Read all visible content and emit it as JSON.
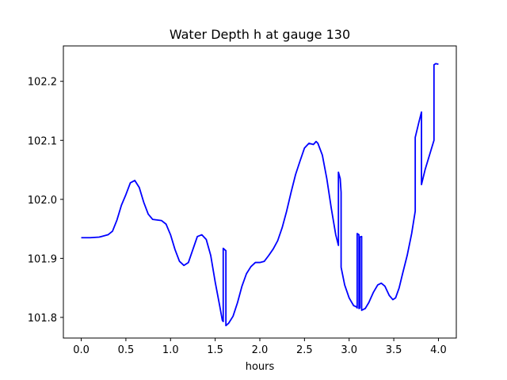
{
  "chart_data": {
    "type": "line",
    "title": "Water Depth h at gauge 130",
    "xlabel": "hours",
    "ylabel": "",
    "xlim": [
      -0.2,
      4.2
    ],
    "ylim": [
      101.765,
      102.26
    ],
    "xticks": [
      0.0,
      0.5,
      1.0,
      1.5,
      2.0,
      2.5,
      3.0,
      3.5,
      4.0
    ],
    "xtick_labels": [
      "0.0",
      "0.5",
      "1.0",
      "1.5",
      "2.0",
      "2.5",
      "3.0",
      "3.5",
      "4.0"
    ],
    "yticks": [
      101.8,
      101.9,
      102.0,
      102.1,
      102.2
    ],
    "ytick_labels": [
      "101.8",
      "101.9",
      "102.0",
      "102.1",
      "102.2"
    ],
    "grid": false,
    "color": "#0000ff",
    "series": [
      {
        "name": "",
        "points": [
          [
            0.0,
            101.935
          ],
          [
            0.1,
            101.935
          ],
          [
            0.2,
            101.936
          ],
          [
            0.3,
            101.94
          ],
          [
            0.35,
            101.946
          ],
          [
            0.4,
            101.965
          ],
          [
            0.45,
            101.99
          ],
          [
            0.5,
            102.008
          ],
          [
            0.55,
            102.028
          ],
          [
            0.6,
            102.032
          ],
          [
            0.65,
            102.02
          ],
          [
            0.7,
            101.995
          ],
          [
            0.75,
            101.975
          ],
          [
            0.8,
            101.966
          ],
          [
            0.85,
            101.965
          ],
          [
            0.9,
            101.964
          ],
          [
            0.95,
            101.958
          ],
          [
            1.0,
            101.94
          ],
          [
            1.05,
            101.915
          ],
          [
            1.1,
            101.895
          ],
          [
            1.15,
            101.888
          ],
          [
            1.2,
            101.893
          ],
          [
            1.25,
            101.915
          ],
          [
            1.3,
            101.937
          ],
          [
            1.35,
            101.94
          ],
          [
            1.4,
            101.932
          ],
          [
            1.45,
            101.905
          ],
          [
            1.5,
            101.86
          ],
          [
            1.55,
            101.82
          ],
          [
            1.58,
            101.795
          ],
          [
            1.59,
            101.793
          ],
          [
            1.59,
            101.917
          ],
          [
            1.62,
            101.913
          ],
          [
            1.62,
            101.786
          ],
          [
            1.65,
            101.79
          ],
          [
            1.7,
            101.802
          ],
          [
            1.75,
            101.825
          ],
          [
            1.8,
            101.853
          ],
          [
            1.85,
            101.874
          ],
          [
            1.9,
            101.886
          ],
          [
            1.95,
            101.893
          ],
          [
            2.0,
            101.893
          ],
          [
            2.05,
            101.895
          ],
          [
            2.1,
            101.905
          ],
          [
            2.15,
            101.916
          ],
          [
            2.2,
            101.93
          ],
          [
            2.25,
            101.952
          ],
          [
            2.3,
            101.98
          ],
          [
            2.35,
            102.012
          ],
          [
            2.4,
            102.042
          ],
          [
            2.45,
            102.065
          ],
          [
            2.5,
            102.087
          ],
          [
            2.55,
            102.095
          ],
          [
            2.6,
            102.093
          ],
          [
            2.63,
            102.098
          ],
          [
            2.65,
            102.095
          ],
          [
            2.7,
            102.075
          ],
          [
            2.75,
            102.035
          ],
          [
            2.8,
            101.985
          ],
          [
            2.85,
            101.94
          ],
          [
            2.88,
            101.922
          ],
          [
            2.88,
            102.046
          ],
          [
            2.9,
            102.035
          ],
          [
            2.91,
            102.012
          ],
          [
            2.91,
            101.885
          ],
          [
            2.95,
            101.855
          ],
          [
            3.0,
            101.833
          ],
          [
            3.05,
            101.82
          ],
          [
            3.08,
            101.818
          ],
          [
            3.09,
            101.816
          ],
          [
            3.09,
            101.942
          ],
          [
            3.11,
            101.94
          ],
          [
            3.11,
            101.815
          ],
          [
            3.12,
            101.816
          ],
          [
            3.12,
            101.936
          ],
          [
            3.14,
            101.937
          ],
          [
            3.14,
            101.812
          ],
          [
            3.18,
            101.815
          ],
          [
            3.22,
            101.825
          ],
          [
            3.27,
            101.842
          ],
          [
            3.32,
            101.855
          ],
          [
            3.36,
            101.858
          ],
          [
            3.4,
            101.853
          ],
          [
            3.45,
            101.837
          ],
          [
            3.49,
            101.83
          ],
          [
            3.52,
            101.833
          ],
          [
            3.56,
            101.85
          ],
          [
            3.6,
            101.875
          ],
          [
            3.65,
            101.905
          ],
          [
            3.7,
            101.942
          ],
          [
            3.74,
            101.98
          ],
          [
            3.74,
            102.105
          ],
          [
            3.78,
            102.13
          ],
          [
            3.81,
            102.148
          ],
          [
            3.81,
            102.025
          ],
          [
            3.85,
            102.05
          ],
          [
            3.9,
            102.075
          ],
          [
            3.95,
            102.1
          ],
          [
            3.95,
            102.228
          ],
          [
            3.97,
            102.23
          ],
          [
            4.0,
            102.229
          ]
        ]
      }
    ]
  }
}
